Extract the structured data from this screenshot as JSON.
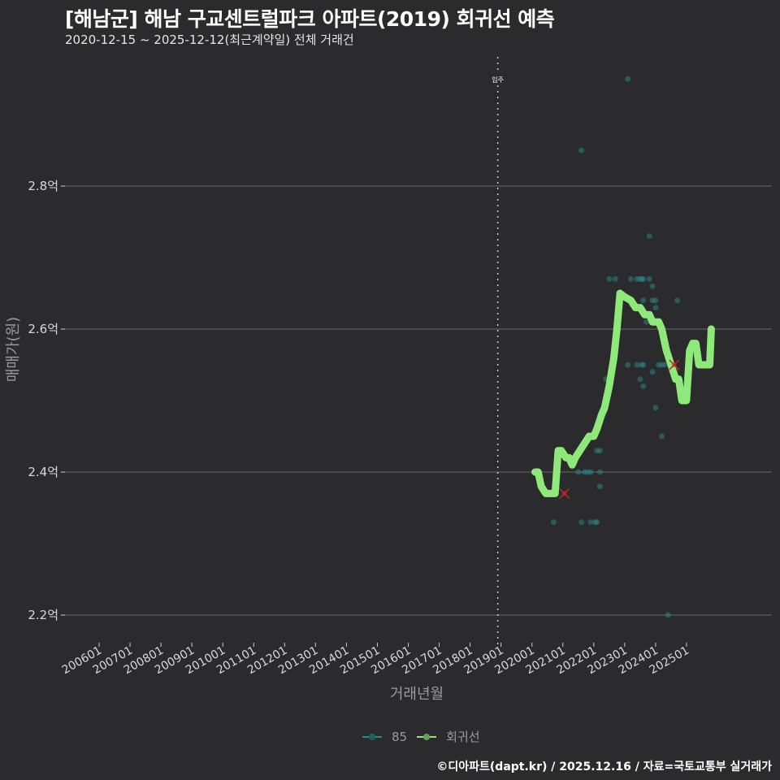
{
  "header": {
    "title": "[해남군] 해남 구교센트럴파크 아파트(2019) 회귀선 예측",
    "subtitle": "2020-12-15 ~ 2025-12-12(최근계약일) 전체 거래건"
  },
  "footer": {
    "credit": "©디아파트(dapt.kr) / 2025.12.16 / 자료=국토교통부 실거래가"
  },
  "legend": {
    "items": [
      {
        "label": "85",
        "color": "#2a8a8a"
      },
      {
        "label": "회귀선",
        "color": "#8ee87a"
      }
    ]
  },
  "colors": {
    "background": "#2b2b2d",
    "grid": "#5e5e5e",
    "points": "#2a8a8a",
    "regression": "#8ee87a",
    "marker": "#c0282a",
    "vline": "#cccccc"
  },
  "chart_data": {
    "type": "scatter",
    "title": "[해남군] 해남 구교센트럴파크 아파트(2019) 회귀선 예측",
    "subtitle": "2020-12-15 ~ 2025-12-12(최근계약일) 전체 거래건",
    "xlabel": "거래년월",
    "ylabel": "매매가(원)",
    "x_tick_labels": [
      "200601",
      "200701",
      "200801",
      "200901",
      "201001",
      "201101",
      "201201",
      "201301",
      "201401",
      "201501",
      "201601",
      "201701",
      "201801",
      "201901",
      "202001",
      "202101",
      "202201",
      "202301",
      "202401",
      "202501"
    ],
    "y_ticks": [
      2.2,
      2.4,
      2.6,
      2.8
    ],
    "y_tick_labels": [
      "2.2억",
      "2.4억",
      "2.6억",
      "2.8억"
    ],
    "ylim": [
      2.16,
      2.98
    ],
    "xlim": [
      2005.5,
      2026.7
    ],
    "grid": "horizontal",
    "legend_position": "bottom",
    "annotation": {
      "label": "입주",
      "x": 2019.0
    },
    "series": [
      {
        "name": "85",
        "type": "scatter",
        "points": [
          [
            2023.1,
            2.95
          ],
          [
            2021.6,
            2.85
          ],
          [
            2023.8,
            2.73
          ],
          [
            2022.5,
            2.67
          ],
          [
            2022.7,
            2.67
          ],
          [
            2023.2,
            2.67
          ],
          [
            2023.4,
            2.67
          ],
          [
            2023.5,
            2.67
          ],
          [
            2023.55,
            2.67
          ],
          [
            2023.6,
            2.67
          ],
          [
            2023.8,
            2.67
          ],
          [
            2023.9,
            2.66
          ],
          [
            2023.6,
            2.64
          ],
          [
            2023.9,
            2.64
          ],
          [
            2024.0,
            2.64
          ],
          [
            2024.7,
            2.64
          ],
          [
            2024.0,
            2.63
          ],
          [
            2023.7,
            2.61
          ],
          [
            2023.1,
            2.55
          ],
          [
            2023.4,
            2.55
          ],
          [
            2023.55,
            2.55
          ],
          [
            2023.6,
            2.55
          ],
          [
            2024.1,
            2.55
          ],
          [
            2024.2,
            2.55
          ],
          [
            2024.3,
            2.55
          ],
          [
            2023.9,
            2.54
          ],
          [
            2023.5,
            2.53
          ],
          [
            2022.4,
            2.53
          ],
          [
            2023.6,
            2.52
          ],
          [
            2024.0,
            2.49
          ],
          [
            2024.2,
            2.45
          ],
          [
            2022.1,
            2.43
          ],
          [
            2022.2,
            2.43
          ],
          [
            2021.5,
            2.4
          ],
          [
            2021.7,
            2.4
          ],
          [
            2021.8,
            2.4
          ],
          [
            2021.9,
            2.4
          ],
          [
            2022.2,
            2.4
          ],
          [
            2022.2,
            2.38
          ],
          [
            2020.7,
            2.33
          ],
          [
            2021.6,
            2.33
          ],
          [
            2021.9,
            2.33
          ],
          [
            2022.05,
            2.33
          ],
          [
            2022.1,
            2.33
          ],
          [
            2024.4,
            2.2
          ]
        ]
      },
      {
        "name": "회귀선",
        "type": "line",
        "points": [
          [
            2020.1,
            2.4
          ],
          [
            2020.2,
            2.4
          ],
          [
            2020.3,
            2.38
          ],
          [
            2020.45,
            2.37
          ],
          [
            2020.6,
            2.37
          ],
          [
            2020.75,
            2.37
          ],
          [
            2020.85,
            2.43
          ],
          [
            2020.95,
            2.43
          ],
          [
            2021.1,
            2.42
          ],
          [
            2021.2,
            2.42
          ],
          [
            2021.3,
            2.41
          ],
          [
            2021.4,
            2.42
          ],
          [
            2021.55,
            2.43
          ],
          [
            2021.7,
            2.44
          ],
          [
            2021.85,
            2.45
          ],
          [
            2022.0,
            2.45
          ],
          [
            2022.1,
            2.46
          ],
          [
            2022.25,
            2.48
          ],
          [
            2022.35,
            2.49
          ],
          [
            2022.5,
            2.52
          ],
          [
            2022.65,
            2.56
          ],
          [
            2022.75,
            2.6
          ],
          [
            2022.85,
            2.65
          ],
          [
            2023.0,
            2.645
          ],
          [
            2023.2,
            2.64
          ],
          [
            2023.35,
            2.63
          ],
          [
            2023.5,
            2.63
          ],
          [
            2023.65,
            2.62
          ],
          [
            2023.8,
            2.62
          ],
          [
            2023.9,
            2.61
          ],
          [
            2024.1,
            2.61
          ],
          [
            2024.2,
            2.6
          ],
          [
            2024.35,
            2.57
          ],
          [
            2024.5,
            2.55
          ],
          [
            2024.65,
            2.53
          ],
          [
            2024.75,
            2.53
          ],
          [
            2024.85,
            2.5
          ],
          [
            2025.0,
            2.5
          ],
          [
            2025.1,
            2.57
          ],
          [
            2025.2,
            2.58
          ],
          [
            2025.3,
            2.58
          ],
          [
            2025.4,
            2.55
          ],
          [
            2025.55,
            2.55
          ],
          [
            2025.65,
            2.55
          ],
          [
            2025.75,
            2.55
          ],
          [
            2025.8,
            2.6
          ]
        ]
      }
    ],
    "markers": [
      {
        "type": "x",
        "x": 2021.05,
        "y": 2.37
      },
      {
        "type": "x",
        "x": 2024.6,
        "y": 2.55
      }
    ]
  }
}
